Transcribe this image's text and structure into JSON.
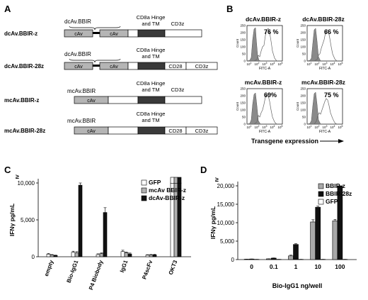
{
  "panel_a": {
    "letter": "A",
    "labels": {
      "dcAv": "dcAv.BBIR",
      "mcAv": "mcAv.BBIR",
      "cav": "cAv",
      "hinge_line1": "CD8a Hinge",
      "hinge_line2": "and TM",
      "cd28": "CD28",
      "cd3z": "CD3z"
    },
    "constructs": [
      "dcAv.BBIR-z",
      "dcAv.BBIR-28z",
      "mcAv.BBIR-z",
      "mcAv.BBIR-28z"
    ]
  },
  "panel_b": {
    "letter": "B",
    "histograms": [
      {
        "title": "dcAv.BBIR-z",
        "percent": "76 %"
      },
      {
        "title": "dcAv.BBIR-28z",
        "percent": "66 %"
      },
      {
        "title": "mcAv.BBIR-z",
        "percent": "69%"
      },
      {
        "title": "mcAv.BBIR-28z",
        "percent": "75 %"
      }
    ],
    "y_ticks": [
      "0",
      "50",
      "100",
      "150",
      "200",
      "250"
    ],
    "x_tick_base": "10",
    "x_tick_exps": [
      "1",
      "2",
      "3",
      "4",
      "5"
    ],
    "xlabel_small": "FITC-A",
    "ylabel_small": "Count",
    "axis_label": "Transgene  expression"
  },
  "chart_data": [
    {
      "type": "bar",
      "panel": "C",
      "ylabel": "IFNγ pg/mL",
      "ylim": [
        0,
        10000
      ],
      "y_ticks": [
        "0",
        "5,000",
        "10,000"
      ],
      "y_top_marker": "≥",
      "categories": [
        "empty",
        "Bio-IgG1",
        "P4 Biobody",
        "IgG1",
        "P4scFv",
        "OKT3"
      ],
      "series": [
        {
          "name": "GFP",
          "color": "#ffffff",
          "values": [
            350,
            600,
            280,
            700,
            220,
            10000
          ]
        },
        {
          "name": "mcAv BBIR-z",
          "color": "#b0b0b0",
          "values": [
            240,
            520,
            420,
            560,
            250,
            10000
          ]
        },
        {
          "name": "dcAv-BBIR-z",
          "color": "#111111",
          "values": [
            180,
            9700,
            6000,
            380,
            260,
            10000
          ]
        }
      ],
      "errors": [
        [
          100,
          150,
          120,
          180,
          50,
          0
        ],
        [
          60,
          170,
          100,
          80,
          60,
          0
        ],
        [
          40,
          300,
          650,
          120,
          70,
          0
        ]
      ],
      "grid": false,
      "legend_position": "top-right"
    },
    {
      "type": "bar",
      "panel": "D",
      "ylabel": "IFNγ pg/mL",
      "xlabel": "Bio-IgG1 ng/well",
      "ylim": [
        0,
        20000
      ],
      "y_ticks": [
        "0",
        "5,000",
        "10,000",
        "15,000",
        "20,000"
      ],
      "y_top_marker": "≥",
      "categories": [
        "0",
        "0.1",
        "1",
        "10",
        "100"
      ],
      "series": [
        {
          "name": "BBIR-z",
          "color": "#a8a8a8",
          "values": [
            100,
            200,
            1000,
            10200,
            10500
          ]
        },
        {
          "name": "BBIR-28z",
          "color": "#111111",
          "values": [
            150,
            400,
            4100,
            14200,
            20000
          ]
        },
        {
          "name": "GFP",
          "color": "#ffffff",
          "values": [
            60,
            60,
            60,
            60,
            60
          ]
        }
      ],
      "errors": [
        [
          20,
          30,
          200,
          600,
          400
        ],
        [
          20,
          50,
          200,
          300,
          0
        ],
        [
          10,
          10,
          10,
          10,
          10
        ]
      ],
      "grid": false,
      "legend_position": "top-left"
    }
  ]
}
